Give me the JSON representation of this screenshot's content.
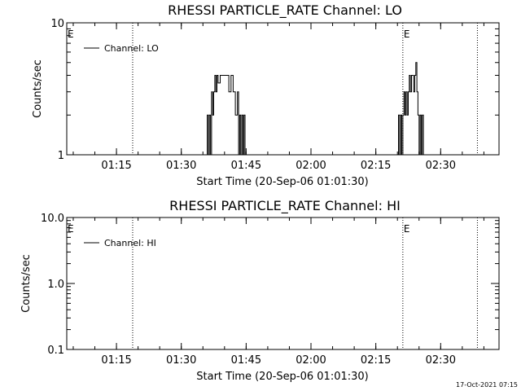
{
  "footer_timestamp": "17-Oct-2021 07:15",
  "chart_data": [
    {
      "type": "line",
      "title": "RHESSI PARTICLE_RATE Channel: LO",
      "xlabel": "Start Time (20-Sep-06 01:01:30)",
      "ylabel": "Counts/sec",
      "yscale": "log",
      "ylim": [
        1,
        10
      ],
      "y_tick_labels": [
        "1",
        "10"
      ],
      "y_tick_values": [
        1,
        10
      ],
      "xlim": [
        "01:03:30",
        "02:43:30"
      ],
      "x_tick_labels": [
        "01:15",
        "01:30",
        "01:45",
        "02:00",
        "02:15",
        "02:30"
      ],
      "x_tick_values": [
        "01:15",
        "01:30",
        "01:45",
        "02:00",
        "02:15",
        "02:30"
      ],
      "legend": {
        "position": "top-left",
        "entries": [
          "Channel: LO"
        ]
      },
      "markers": [
        {
          "label": "E",
          "x": "01:03:30"
        },
        {
          "label": "",
          "x": "01:18:45"
        },
        {
          "label": "E",
          "x": "02:21:15"
        },
        {
          "label": "",
          "x": "02:38:30"
        }
      ],
      "series": [
        {
          "name": "Channel: LO",
          "x": [
            "01:35:30",
            "01:36:00",
            "01:36:15",
            "01:36:30",
            "01:36:45",
            "01:37:00",
            "01:37:15",
            "01:37:30",
            "01:37:45",
            "01:38:00",
            "01:38:15",
            "01:38:30",
            "01:39:00",
            "01:39:30",
            "01:40:00",
            "01:40:30",
            "01:41:00",
            "01:41:30",
            "01:42:00",
            "01:42:30",
            "01:43:00",
            "01:43:15",
            "01:43:30",
            "01:43:45",
            "01:44:00",
            "01:44:15",
            "01:44:30",
            "01:44:45",
            "01:45:00",
            "02:20:00",
            "02:20:15",
            "02:20:30",
            "02:20:45",
            "02:21:00",
            "02:21:15",
            "02:21:30",
            "02:21:45",
            "02:22:00",
            "02:22:15",
            "02:22:30",
            "02:22:45",
            "02:23:00",
            "02:23:15",
            "02:23:30",
            "02:23:45",
            "02:24:00",
            "02:24:15",
            "02:24:30",
            "02:24:45",
            "02:25:00",
            "02:25:15",
            "02:25:30",
            "02:25:45",
            "02:26:00"
          ],
          "y": [
            1.0,
            2.0,
            1.0,
            2.0,
            1.0,
            3.0,
            2.0,
            3.0,
            4.0,
            3.0,
            4.0,
            3.5,
            4.0,
            4.0,
            4.0,
            4.0,
            3.0,
            4.0,
            3.0,
            2.0,
            3.0,
            1.0,
            2.0,
            1.0,
            2.0,
            1.0,
            2.0,
            1.0,
            1.0,
            1.0,
            2.0,
            1.0,
            2.0,
            1.0,
            2.0,
            3.0,
            2.0,
            3.0,
            2.0,
            3.0,
            4.0,
            3.0,
            4.0,
            4.0,
            3.0,
            4.0,
            5.0,
            3.0,
            2.0,
            1.0,
            2.0,
            1.0,
            2.0,
            1.0
          ]
        }
      ]
    },
    {
      "type": "line",
      "title": "RHESSI PARTICLE_RATE Channel: HI",
      "xlabel": "Start Time (20-Sep-06 01:01:30)",
      "ylabel": "Counts/sec",
      "yscale": "log",
      "ylim": [
        0.1,
        10
      ],
      "y_tick_labels": [
        "0.1",
        "1.0",
        "10.0"
      ],
      "y_tick_values": [
        0.1,
        1,
        10
      ],
      "xlim": [
        "01:03:30",
        "02:43:30"
      ],
      "x_tick_labels": [
        "01:15",
        "01:30",
        "01:45",
        "02:00",
        "02:15",
        "02:30"
      ],
      "x_tick_values": [
        "01:15",
        "01:30",
        "01:45",
        "02:00",
        "02:15",
        "02:30"
      ],
      "legend": {
        "position": "top-left",
        "entries": [
          "Channel: HI"
        ]
      },
      "markers": [
        {
          "label": "E",
          "x": "01:03:30"
        },
        {
          "label": "",
          "x": "01:18:45"
        },
        {
          "label": "E",
          "x": "02:21:15"
        },
        {
          "label": "",
          "x": "02:38:30"
        }
      ],
      "series": [
        {
          "name": "Channel: HI",
          "x": [],
          "y": []
        }
      ]
    }
  ]
}
